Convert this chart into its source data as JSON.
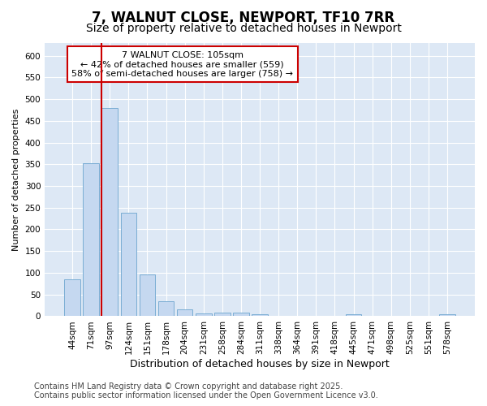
{
  "title": "7, WALNUT CLOSE, NEWPORT, TF10 7RR",
  "subtitle": "Size of property relative to detached houses in Newport",
  "xlabel": "Distribution of detached houses by size in Newport",
  "ylabel": "Number of detached properties",
  "categories": [
    "44sqm",
    "71sqm",
    "97sqm",
    "124sqm",
    "151sqm",
    "178sqm",
    "204sqm",
    "231sqm",
    "258sqm",
    "284sqm",
    "311sqm",
    "338sqm",
    "364sqm",
    "391sqm",
    "418sqm",
    "445sqm",
    "471sqm",
    "498sqm",
    "525sqm",
    "551sqm",
    "578sqm"
  ],
  "values": [
    85,
    352,
    480,
    238,
    96,
    35,
    16,
    7,
    8,
    8,
    5,
    0,
    0,
    0,
    0,
    5,
    0,
    0,
    0,
    0,
    5
  ],
  "bar_color": "#c5d8f0",
  "bar_edge_color": "#7aadd4",
  "vline_color": "#cc0000",
  "vline_x_index": 2,
  "annotation_text": "7 WALNUT CLOSE: 105sqm\n← 42% of detached houses are smaller (559)\n58% of semi-detached houses are larger (758) →",
  "box_color": "#cc0000",
  "ylim": [
    0,
    630
  ],
  "yticks": [
    0,
    50,
    100,
    150,
    200,
    250,
    300,
    350,
    400,
    450,
    500,
    550,
    600
  ],
  "background_color": "#dde8f5",
  "footer_text": "Contains HM Land Registry data © Crown copyright and database right 2025.\nContains public sector information licensed under the Open Government Licence v3.0.",
  "title_fontsize": 12,
  "subtitle_fontsize": 10,
  "xlabel_fontsize": 9,
  "ylabel_fontsize": 8,
  "tick_fontsize": 7.5,
  "annotation_fontsize": 8,
  "footer_fontsize": 7
}
